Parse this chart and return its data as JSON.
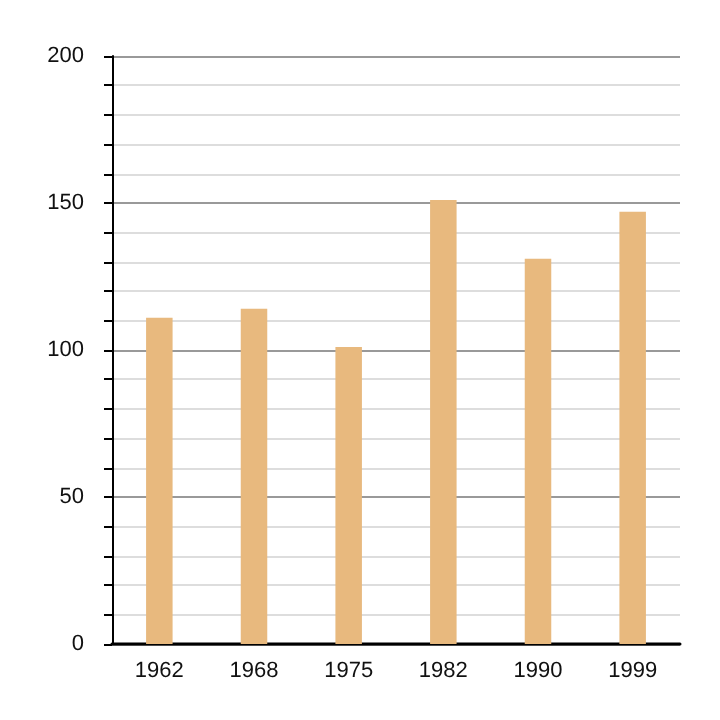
{
  "chart_data": {
    "type": "bar",
    "categories": [
      "1962",
      "1968",
      "1975",
      "1982",
      "1990",
      "1999"
    ],
    "values": [
      111,
      114,
      101,
      151,
      131,
      147
    ],
    "color": "#e8b97e",
    "ylim": [
      0,
      200
    ],
    "yticks": [
      0,
      {
        "value": 10,
        "label": null
      },
      {
        "value": 20,
        "label": null
      },
      {
        "value": 30,
        "label": null
      },
      {
        "value": 40,
        "label": null
      },
      50,
      {
        "value": 60,
        "label": null
      },
      {
        "value": 70,
        "label": null
      },
      {
        "value": 80,
        "label": null
      },
      {
        "value": 90,
        "label": null
      },
      100,
      {
        "value": 110,
        "label": null
      },
      {
        "value": 120,
        "label": null
      },
      {
        "value": 130,
        "label": null
      },
      {
        "value": 140,
        "label": null
      },
      150,
      {
        "value": 160,
        "label": null
      },
      {
        "value": 170,
        "label": null
      },
      {
        "value": 180,
        "label": null
      },
      {
        "value": 190,
        "label": null
      },
      200
    ],
    "grid": "y"
  }
}
